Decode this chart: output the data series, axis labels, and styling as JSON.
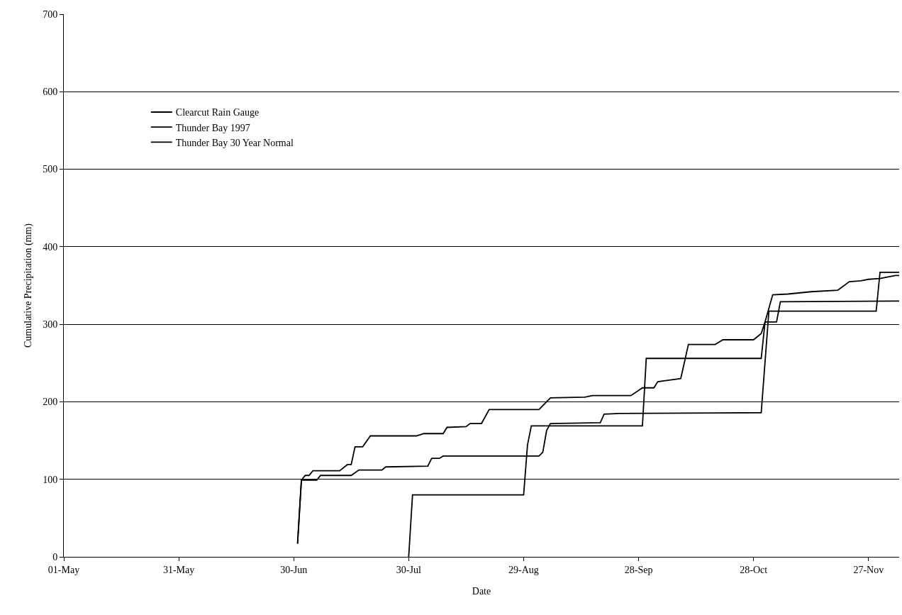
{
  "chart_data": {
    "type": "line",
    "xlabel": "Date",
    "ylabel": "Cumulative Precipitation (mm)",
    "xlim": [
      "--05-01",
      "--12-05"
    ],
    "xticks": [
      {
        "value": "--05-01",
        "label": "01-May"
      },
      {
        "value": "--05-31",
        "label": "31-May"
      },
      {
        "value": "--06-30",
        "label": "30-Jun"
      },
      {
        "value": "--07-30",
        "label": "30-Jul"
      },
      {
        "value": "--08-29",
        "label": "29-Aug"
      },
      {
        "value": "--09-28",
        "label": "28-Sep"
      },
      {
        "value": "--10-28",
        "label": "28-Oct"
      },
      {
        "value": "--11-27",
        "label": "27-Nov"
      }
    ],
    "ylim": [
      0,
      700
    ],
    "yticks": [
      0,
      100,
      200,
      300,
      400,
      500,
      600,
      700
    ],
    "grid": "y",
    "legend": "top left",
    "marker": "none",
    "line_style": "solid",
    "series": [
      {
        "name": "Clearcut Rain Gauge",
        "color": "#000000",
        "x": [
          "--07-30",
          "--07-31",
          "--08-29",
          "--08-30",
          "--08-31",
          "--09-29",
          "--09-30",
          "--10-30",
          "--10-31",
          "--11-03",
          "--11-04",
          "--12-05"
        ],
        "values": [
          0,
          80,
          80,
          144,
          169,
          169,
          256,
          256,
          303,
          303,
          329,
          330
        ]
      },
      {
        "name": "Thunder Bay 1997",
        "color": "#000000",
        "x": [
          "--07-01",
          "--07-02",
          "--07-06",
          "--07-07",
          "--07-15",
          "--07-17",
          "--07-23",
          "--07-24",
          "--08-04",
          "--08-05",
          "--08-07",
          "--08-08",
          "--09-02",
          "--09-03",
          "--09-04",
          "--09-05",
          "--09-18",
          "--09-19",
          "--09-23",
          "--10-30",
          "--11-01",
          "--11-29",
          "--11-30",
          "--12-05"
        ],
        "values": [
          17,
          99,
          99,
          105,
          105,
          112,
          112,
          116,
          117,
          127,
          127,
          130,
          130,
          135,
          163,
          172,
          173,
          184,
          185,
          186,
          317,
          317,
          367,
          367
        ]
      },
      {
        "name": "Thunder Bay 30 Year Normal",
        "color": "#000000",
        "x": [
          "--07-01",
          "--07-02",
          "--07-03",
          "--07-04",
          "--07-05",
          "--07-12",
          "--07-14",
          "--07-15",
          "--07-16",
          "--07-18",
          "--07-20",
          "--08-01",
          "--08-03",
          "--08-08",
          "--08-09",
          "--08-14",
          "--08-15",
          "--08-18",
          "--08-20",
          "--09-02",
          "--09-05",
          "--09-14",
          "--09-16",
          "--09-26",
          "--09-29",
          "--10-02",
          "--10-03",
          "--10-06",
          "--10-09",
          "--10-11",
          "--10-18",
          "--10-20",
          "--10-28",
          "--10-30",
          "--10-31",
          "--11-02",
          "--11-06",
          "--11-12",
          "--11-19",
          "--11-22",
          "--11-25",
          "--11-27",
          "--11-30",
          "--12-04",
          "--12-05"
        ],
        "values": [
          17,
          99,
          105,
          105,
          111,
          111,
          119,
          119,
          142,
          142,
          156,
          156,
          159,
          159,
          167,
          168,
          172,
          172,
          190,
          190,
          205,
          206,
          208,
          208,
          218,
          218,
          226,
          228,
          230,
          274,
          274,
          280,
          280,
          288,
          303,
          338,
          339,
          342,
          344,
          355,
          356,
          358,
          359,
          363,
          363
        ]
      }
    ]
  }
}
